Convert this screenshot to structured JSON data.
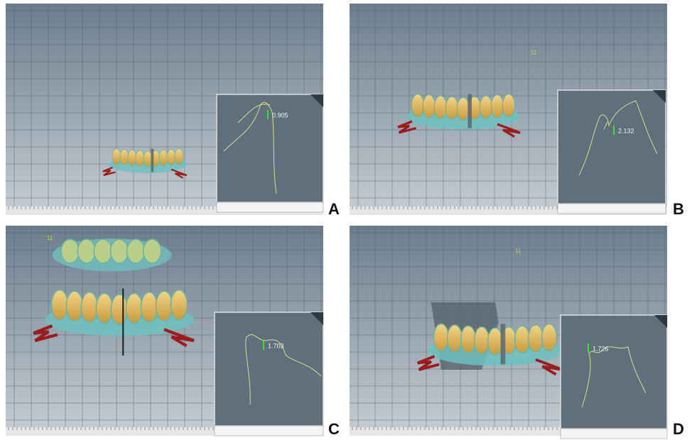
{
  "panels": [
    {
      "label": "A",
      "measurement": 0.905
    },
    {
      "label": "B",
      "measurement": 2.132,
      "tooth_number": "11"
    },
    {
      "label": "C",
      "measurement": 1.703,
      "tooth_number": "11"
    },
    {
      "label": "D",
      "measurement": 1.726,
      "tooth_number": "11"
    }
  ]
}
